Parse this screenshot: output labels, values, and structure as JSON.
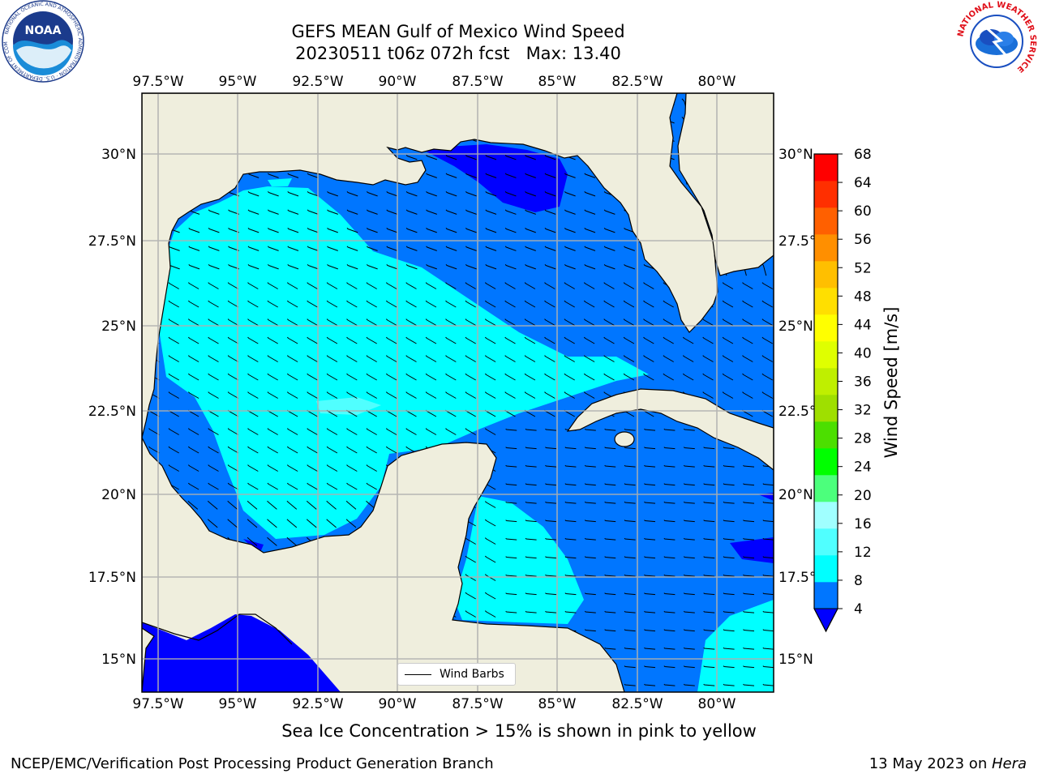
{
  "title": {
    "line1": "GEFS MEAN Gulf of Mexico Wind Speed",
    "line2": "20230511 t06z 072h fcst   Max: 13.40"
  },
  "map": {
    "type": "filled-contour map with wind barbs",
    "region": "Gulf of Mexico",
    "lon_ticks": [
      "97.5°W",
      "95°W",
      "92.5°W",
      "90°W",
      "87.5°W",
      "85°W",
      "82.5°W",
      "80°W"
    ],
    "lat_ticks": [
      "30°N",
      "27.5°N",
      "25°N",
      "22.5°N",
      "20°N",
      "17.5°N",
      "15°N"
    ],
    "lon_range": [
      -98,
      -78.2
    ],
    "lat_range": [
      14,
      31.8
    ],
    "land_color": "#efeedd",
    "grid": true,
    "legend_label": "Wind Barbs",
    "legend_location": "bottom-center"
  },
  "colorbar": {
    "label": "Wind Speed [m/s]",
    "ticks": [
      "4",
      "8",
      "12",
      "16",
      "20",
      "24",
      "28",
      "32",
      "36",
      "40",
      "44",
      "48",
      "52",
      "56",
      "60",
      "64",
      "68"
    ],
    "colors": [
      "#0076ff",
      "#00ffff",
      "#50ffff",
      "#a0ffff",
      "#4cff7c",
      "#00ff00",
      "#4cdf00",
      "#9fdf00",
      "#bfef00",
      "#dfff00",
      "#ffff00",
      "#ffdf00",
      "#ffbf00",
      "#ff8f00",
      "#ff6000",
      "#ff2f00",
      "#ff0000"
    ],
    "extend_color": "#0000ff",
    "extend": "min"
  },
  "subtitle": "Sea Ice Concentration > 15% is shown in pink to yellow",
  "footer": {
    "left": "NCEP/EMC/Verification Post Processing Product Generation Branch",
    "right_prefix": "13 May 2023 on ",
    "right_host": "Hera"
  },
  "logos": {
    "noaa": "NOAA",
    "noaa_ring": "NATIONAL OCEANIC AND ATMOSPHERIC ADMINISTRATION · U.S. DEPARTMENT OF COMMERCE",
    "nws_ring": "NATIONAL WEATHER SERVICE"
  }
}
